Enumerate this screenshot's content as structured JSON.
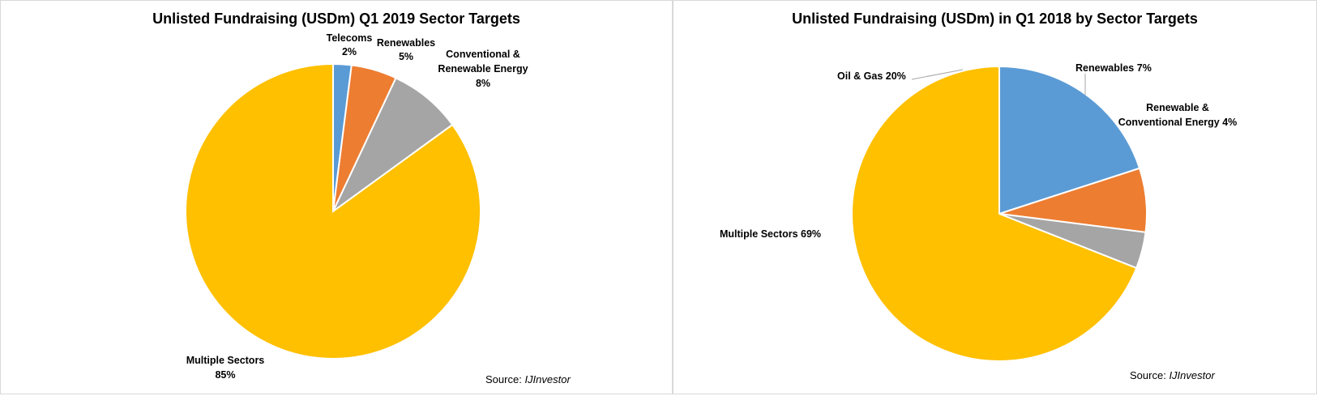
{
  "chart_data": [
    {
      "type": "pie",
      "title": "Unlisted Fundraising (USDm) Q1 2019 Sector Targets",
      "source_label": "Source:",
      "source_name": "IJInvestor",
      "slices": [
        {
          "name": "Telecoms",
          "value": 2,
          "value_label": "2%",
          "color": "#5b9bd5"
        },
        {
          "name": "Renewables",
          "value": 5,
          "value_label": "5%",
          "color": "#ed7d31"
        },
        {
          "name": "Conventional & Renewable Energy",
          "name_lines": [
            "Conventional &",
            "Renewable Energy"
          ],
          "value": 8,
          "value_label": "8%",
          "color": "#a5a5a5"
        },
        {
          "name": "Multiple Sectors",
          "value": 85,
          "value_label": "85%",
          "color": "#ffc000"
        }
      ]
    },
    {
      "type": "pie",
      "title": "Unlisted Fundraising (USDm) in Q1 2018 by Sector Targets",
      "source_label": "Source:",
      "source_name": "IJInvestor",
      "slices": [
        {
          "name": "Oil & Gas",
          "value": 20,
          "value_label": "20%",
          "color": "#5b9bd5"
        },
        {
          "name": "Renewables",
          "value": 7,
          "value_label": "7%",
          "color": "#ed7d31"
        },
        {
          "name": "Renewable & Conventional Energy",
          "name_lines": [
            "Renewable &",
            "Conventional Energy 4%"
          ],
          "value": 4,
          "value_label": "4%",
          "color": "#a5a5a5"
        },
        {
          "name": "Multiple Sectors",
          "value": 69,
          "value_label": "69%",
          "color": "#ffc000"
        }
      ]
    }
  ]
}
